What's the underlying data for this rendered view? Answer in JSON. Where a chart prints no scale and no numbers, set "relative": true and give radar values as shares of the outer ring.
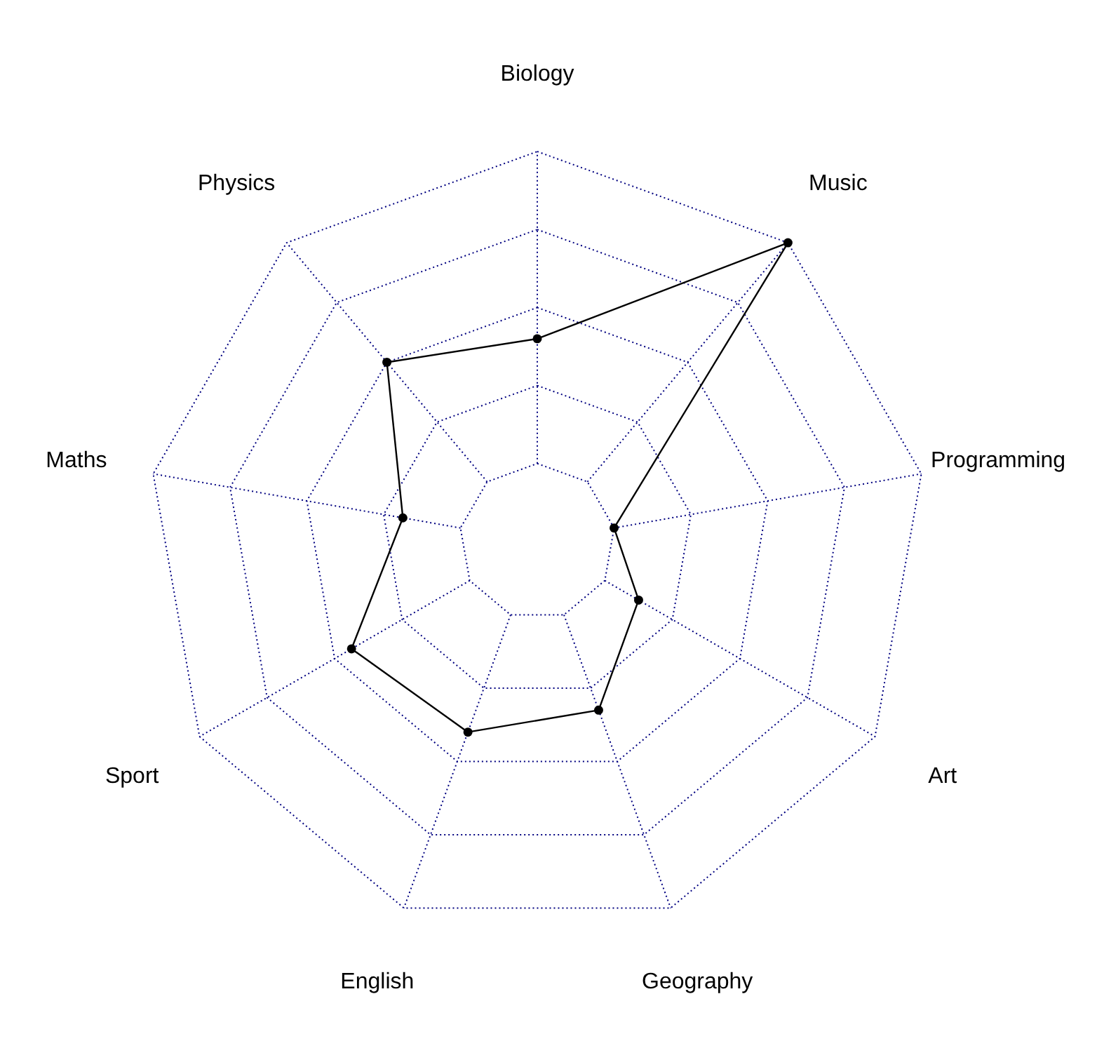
{
  "chart_data": {
    "type": "radar",
    "categories": [
      "Biology",
      "Music",
      "Programming",
      "Art",
      "Geography",
      "English",
      "Sport",
      "Maths",
      "Physics"
    ],
    "relative": true,
    "grid": true,
    "marker": "circle",
    "line_style": "solid",
    "series": [
      {
        "color": "#000000",
        "values": [
          0.52,
          1.0,
          0.2,
          0.3,
          0.46,
          0.52,
          0.55,
          0.35,
          0.6
        ]
      }
    ]
  }
}
